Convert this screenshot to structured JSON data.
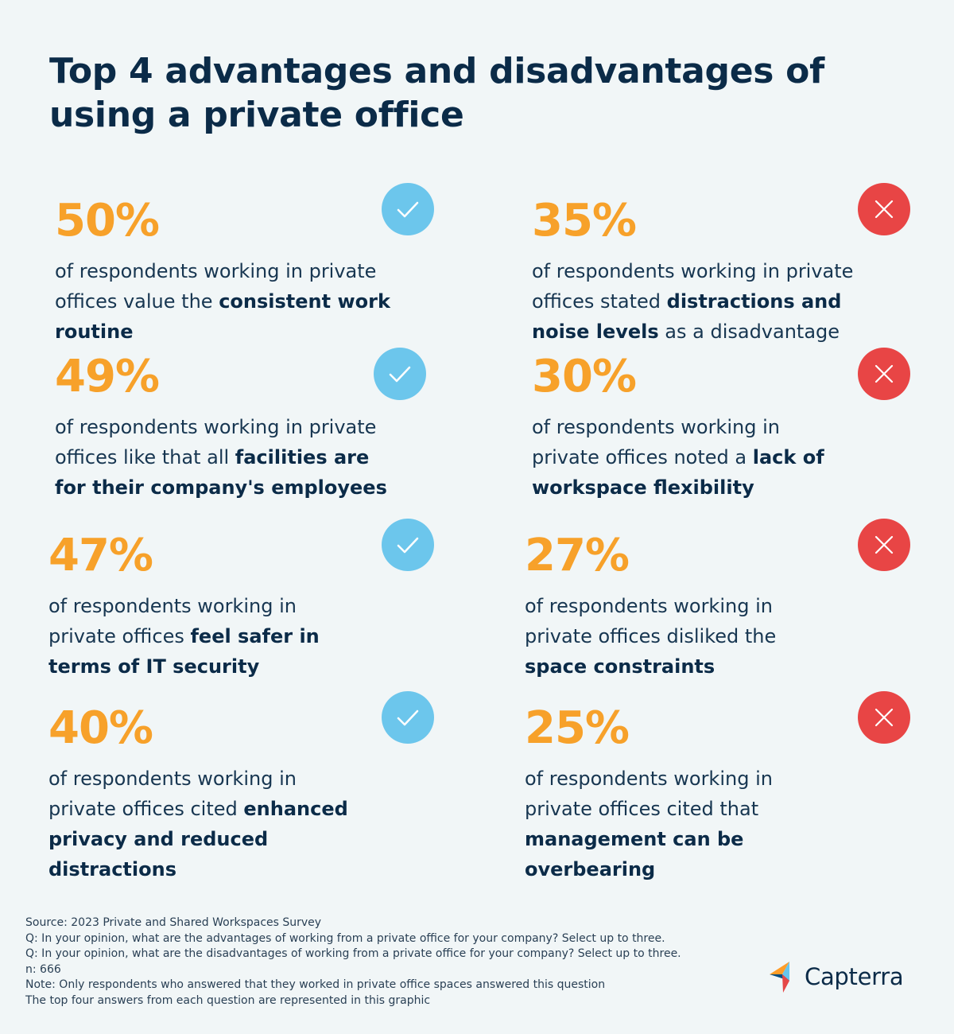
{
  "title": "Top 4 advantages and disadvantages of using a private office",
  "colors": {
    "percent": "#f7a12a",
    "advantage_badge": "#6cc6ec",
    "disadvantage_badge": "#e84545",
    "text": "#0b2b48",
    "background": "#f1f6f7"
  },
  "advantages": [
    {
      "percent": "50%",
      "pre": "of respondents working in private offices value the ",
      "bold": "consistent work routine",
      "post": "",
      "icon": "check-icon"
    },
    {
      "percent": "49%",
      "pre": " of respondents working in private offices like that all ",
      "bold": "facilities are for their company's employees",
      "post": "",
      "icon": "check-icon"
    },
    {
      "percent": "47%",
      "pre": " of respondents working in private offices ",
      "bold": "feel safer in terms of IT security",
      "post": "",
      "icon": "check-icon"
    },
    {
      "percent": "40%",
      "pre": " of respondents working in private offices cited ",
      "bold": "enhanced privacy and reduced distractions",
      "post": "",
      "icon": "check-icon"
    }
  ],
  "disadvantages": [
    {
      "percent": "35%",
      "pre": "of respondents working in private offices stated ",
      "bold": "distractions and noise levels",
      "post": " as a disadvantage",
      "icon": "x-icon"
    },
    {
      "percent": "30%",
      "pre": " of respondents working in private offices noted a ",
      "bold": "lack of workspace flexibility",
      "post": "",
      "icon": "x-icon"
    },
    {
      "percent": "27%",
      "pre": " of respondents working in private offices disliked the ",
      "bold": "space constraints",
      "post": "",
      "icon": "x-icon"
    },
    {
      "percent": "25%",
      "pre": "of respondents working in private offices cited that ",
      "bold": "management can be overbearing",
      "post": "",
      "icon": "x-icon"
    }
  ],
  "source": {
    "line1": "Source: 2023 Private and Shared Workspaces Survey",
    "line2": "Q: In your opinion, what are the advantages of working from a private office for your company? Select up to three.",
    "line3": "Q: In your opinion, what are the disadvantages of working from a private office for your company? Select up to three.",
    "line4": "n: 666",
    "line5": "Note: Only respondents who answered that they worked in private office spaces answered this question",
    "line6": "The top four answers from each question are represented in this graphic"
  },
  "logo": {
    "text": "Capterra",
    "icon": "capterra-logo-icon"
  }
}
